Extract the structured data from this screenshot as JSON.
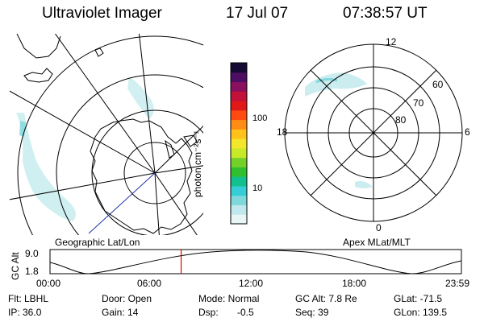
{
  "header": {
    "instrument": "Ultraviolet Imager",
    "date": "17 Jul 07",
    "time": "07:38:57 UT"
  },
  "geo_panel": {
    "label": "Geographic Lat/Lon"
  },
  "colorbar": {
    "unit_label": "photon cm⁻²s⁻¹",
    "scale": "log",
    "ticks": [
      "100",
      "10"
    ],
    "colors": [
      "#e8f6f6",
      "#bfe9ec",
      "#7fd8dc",
      "#35cdd6",
      "#12c08e",
      "#2fbf2f",
      "#74d12a",
      "#c8e82a",
      "#f4e62a",
      "#ffc21a",
      "#ff8c14",
      "#ff4a12",
      "#e01818",
      "#c2123a",
      "#8a0f5e",
      "#4d0d63",
      "#140a33"
    ]
  },
  "apex_panel": {
    "label": "Apex MLat/MLT",
    "mlt_labels": {
      "top": "12",
      "left": "18",
      "right": "6",
      "bottom": "0"
    },
    "lat_labels": [
      "60",
      "70",
      "80"
    ]
  },
  "altitude_plot": {
    "ylabel": "GC Alt",
    "ymax_label": "9.0",
    "ymin_label": "1.8",
    "x_ticks": [
      "00:00",
      "06:00",
      "12:00",
      "18:00",
      "23:59"
    ],
    "marker_time_hours": 7.65
  },
  "status": {
    "filter": "Flt: LBHL",
    "ip": "IP: 36.0",
    "door": "Door: Open",
    "gain": "Gain: 14",
    "mode": "Mode: Normal",
    "dsp_label": "Dsp:",
    "dsp_value": "-0.5",
    "gc_alt": "GC Alt: 7.8 Re",
    "seq": "Seq: 39",
    "glat": "GLat: -71.5",
    "glon": "GLon: 139.5"
  }
}
